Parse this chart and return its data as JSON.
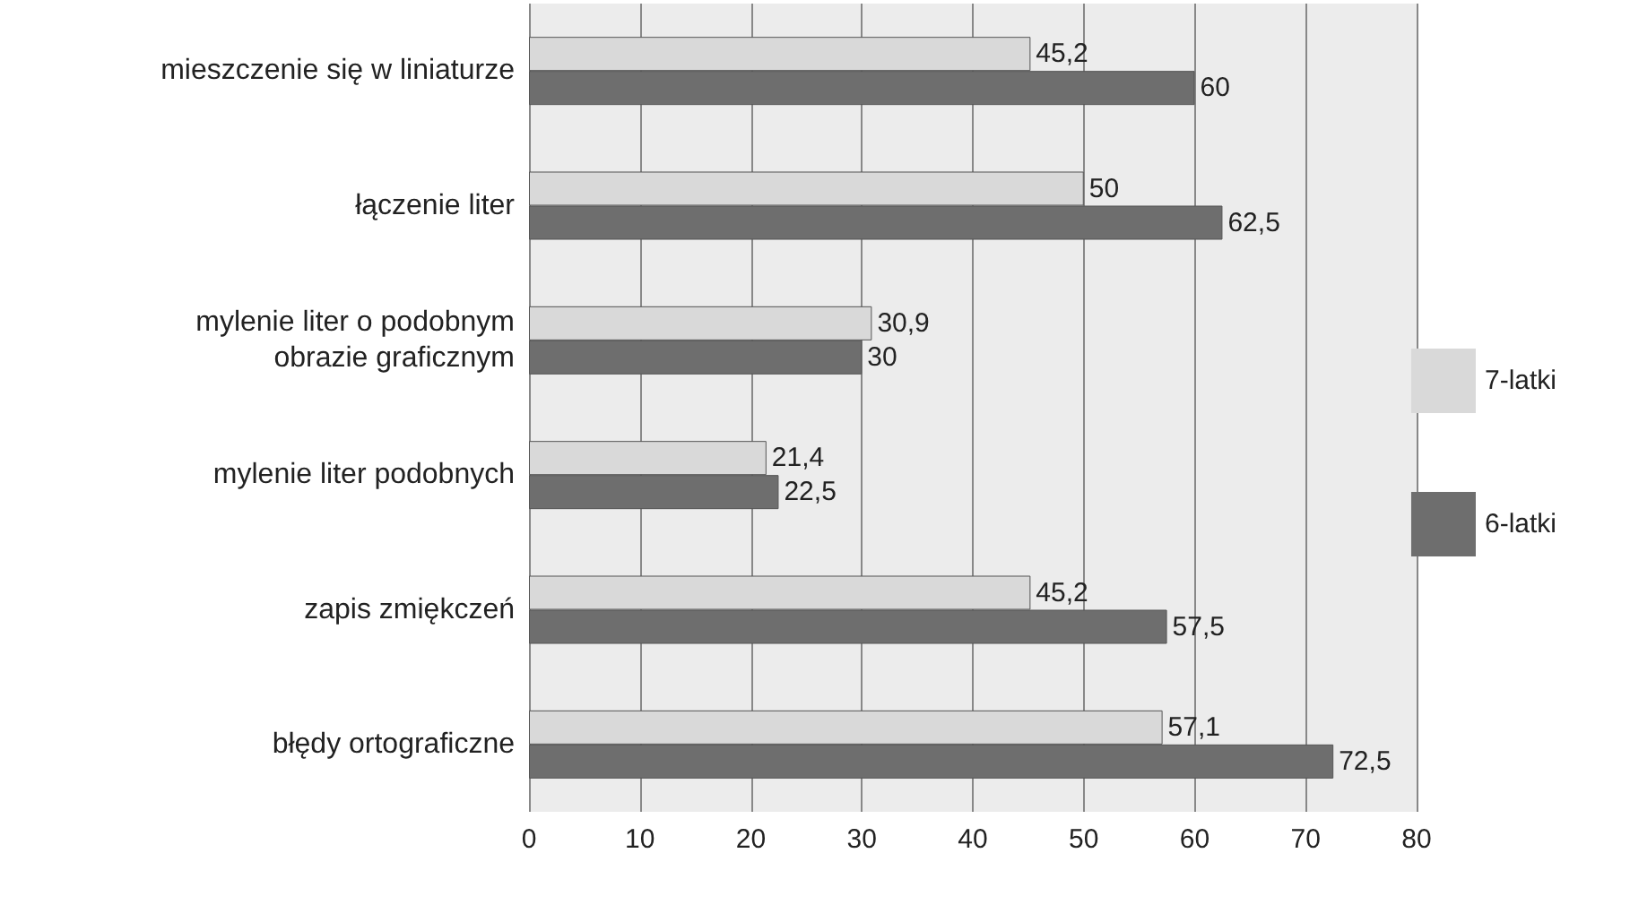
{
  "chart_data": {
    "type": "bar",
    "orientation": "horizontal",
    "categories": [
      "mieszczenie się w liniaturze",
      "łączenie liter",
      "mylenie liter o podobnym\nobrazie graficznym",
      "mylenie liter podobnych",
      "zapis zmiękczeń",
      "błędy ortograficzne"
    ],
    "series": [
      {
        "name": "7-latki",
        "color": "#d9d9d9",
        "values": [
          45.2,
          50,
          30.9,
          21.4,
          45.2,
          57.1
        ],
        "value_labels": [
          "45,2",
          "50",
          "30,9",
          "21,4",
          "45,2",
          "57,1"
        ]
      },
      {
        "name": "6-latki",
        "color": "#6e6e6e",
        "values": [
          60,
          62.5,
          30,
          22.5,
          57.5,
          72.5
        ],
        "value_labels": [
          "60",
          "62,5",
          "30",
          "22,5",
          "57,5",
          "72,5"
        ]
      }
    ],
    "xlim": [
      0,
      80
    ],
    "xticks": [
      0,
      10,
      20,
      30,
      40,
      50,
      60,
      70,
      80
    ],
    "grid": "x",
    "legend": "right"
  }
}
